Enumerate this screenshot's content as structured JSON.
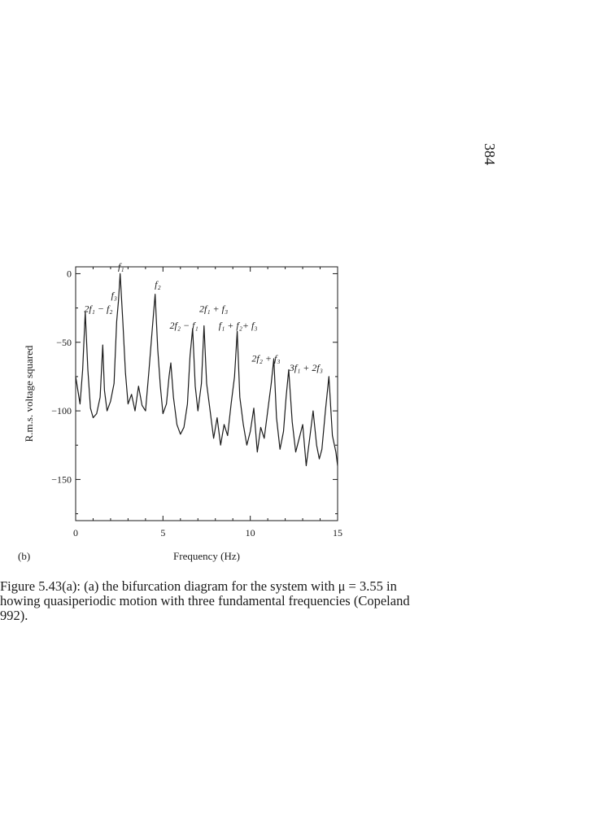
{
  "page_number": "384",
  "panel_label": "(b)",
  "caption_lines": [
    "Figure 5.43(a): (a) the bifurcation diagram for the system with μ = 3.55 in",
    "howing quasiperiodic motion with three fundamental frequencies (Copeland",
    "992)."
  ],
  "chart_data": {
    "type": "line",
    "xlabel": "Frequency (Hz)",
    "ylabel": "R.m.s. voltage squared",
    "xlim": [
      0,
      15
    ],
    "ylim": [
      -180,
      5
    ],
    "x_ticks": [
      0,
      5,
      10,
      15
    ],
    "y_ticks": [
      0,
      -50,
      -100,
      -150
    ],
    "grid": false,
    "series": [
      {
        "x": [
          0,
          0.25,
          0.4,
          0.55,
          0.7,
          0.85,
          1.0,
          1.2,
          1.4,
          1.55,
          1.65,
          1.8,
          2.0,
          2.2,
          2.35,
          2.45,
          2.55,
          2.7,
          2.85,
          3.0,
          3.2,
          3.4,
          3.6,
          3.8,
          4.0,
          4.2,
          4.4,
          4.55,
          4.7,
          4.85,
          5.0,
          5.2,
          5.35,
          5.45,
          5.6,
          5.8,
          6.0,
          6.2,
          6.4,
          6.55,
          6.7,
          6.85,
          7.0,
          7.2,
          7.35,
          7.5,
          7.7,
          7.9,
          8.1,
          8.3,
          8.5,
          8.7,
          8.9,
          9.1,
          9.25,
          9.4,
          9.6,
          9.8,
          10.0,
          10.2,
          10.4,
          10.6,
          10.8,
          11.0,
          11.2,
          11.35,
          11.5,
          11.7,
          11.9,
          12.05,
          12.2,
          12.4,
          12.6,
          12.8,
          13.0,
          13.2,
          13.4,
          13.6,
          13.8,
          13.95,
          14.1,
          14.3,
          14.5,
          14.7,
          14.9,
          15.0
        ],
        "y": [
          -75,
          -95,
          -70,
          -28,
          -70,
          -98,
          -105,
          -102,
          -90,
          -52,
          -85,
          -100,
          -93,
          -80,
          -35,
          -20,
          0,
          -35,
          -72,
          -95,
          -88,
          -100,
          -82,
          -96,
          -100,
          -70,
          -38,
          -15,
          -55,
          -82,
          -102,
          -95,
          -75,
          -65,
          -90,
          -110,
          -117,
          -112,
          -95,
          -60,
          -40,
          -82,
          -100,
          -80,
          -38,
          -80,
          -100,
          -120,
          -105,
          -125,
          -110,
          -118,
          -95,
          -75,
          -42,
          -90,
          -110,
          -125,
          -115,
          -98,
          -130,
          -112,
          -120,
          -100,
          -80,
          -62,
          -105,
          -128,
          -115,
          -90,
          -70,
          -108,
          -130,
          -120,
          -110,
          -140,
          -120,
          -100,
          -125,
          -135,
          -128,
          -100,
          -75,
          -118,
          -130,
          -140
        ]
      }
    ],
    "annotations": [
      {
        "text": "f₁",
        "x": 2.6,
        "y": 3
      },
      {
        "text": "f₃",
        "x": 2.2,
        "y": -18
      },
      {
        "text": "2f₁ − f₂",
        "x": 1.3,
        "y": -28
      },
      {
        "text": "f₂",
        "x": 4.7,
        "y": -10
      },
      {
        "text": "2f₁ + f₃",
        "x": 7.9,
        "y": -28
      },
      {
        "text": "2f₂ − f₁",
        "x": 6.2,
        "y": -40
      },
      {
        "text": "f₁ + f₂+ f₃",
        "x": 9.3,
        "y": -40
      },
      {
        "text": "2f₂ + f₃",
        "x": 10.9,
        "y": -64
      },
      {
        "text": "3f₁ + 2f₃",
        "x": 13.2,
        "y": -71
      }
    ]
  }
}
